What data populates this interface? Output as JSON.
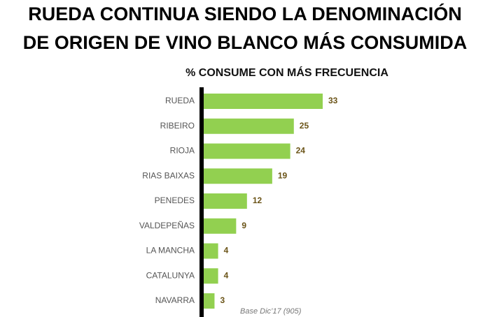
{
  "chart_data": {
    "type": "bar",
    "orientation": "horizontal",
    "title": [
      "RUEDA CONTINUA SIENDO LA DENOMINACIÓN",
      "DE ORIGEN DE VINO BLANCO MÁS CONSUMIDA"
    ],
    "subtitle": "% CONSUME CON MÁS FRECUENCIA",
    "categories": [
      "RUEDA",
      "RIBEIRO",
      "RIOJA",
      "RIAS BAIXAS",
      "PENEDES",
      "VALDEPEÑAS",
      "LA MANCHA",
      "CATALUNYA",
      "NAVARRA"
    ],
    "values": [
      33,
      25,
      24,
      19,
      12,
      9,
      4,
      4,
      3
    ],
    "color": "#92d050",
    "note": "Base Dic’17 (905)"
  }
}
